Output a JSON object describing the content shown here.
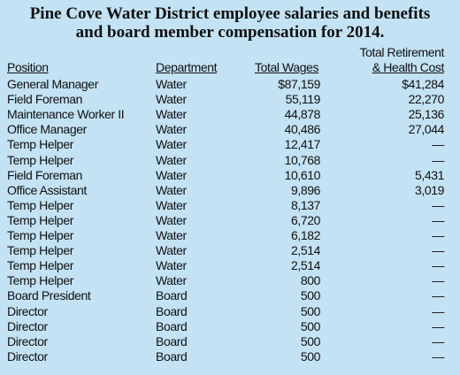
{
  "title": [
    "Pine Cove Water District employee salaries and benefits",
    "and board member compensation for 2014."
  ],
  "table": {
    "headers": [
      "Position",
      "Department",
      "Total Wages",
      [
        "Total Retirement",
        "& Health Cost"
      ]
    ],
    "rows": [
      [
        "General Manager",
        "Water",
        "$87,159",
        "$41,284"
      ],
      [
        "Field Foreman",
        "Water",
        "55,119",
        "22,270"
      ],
      [
        "Maintenance Worker II",
        "Water",
        "44,878",
        "25,136"
      ],
      [
        "Office Manager",
        "Water",
        "40,486",
        "27,044"
      ],
      [
        "Temp Helper",
        "Water",
        "12,417",
        "—"
      ],
      [
        "Temp Helper",
        "Water",
        "10,768",
        "—"
      ],
      [
        "Field Foreman",
        "Water",
        "10,610",
        "5,431"
      ],
      [
        "Office Assistant",
        "Water",
        "9,896",
        "3,019"
      ],
      [
        "Temp Helper",
        "Water",
        "8,137",
        "—"
      ],
      [
        "Temp Helper",
        "Water",
        "6,720",
        "—"
      ],
      [
        "Temp Helper",
        "Water",
        "6,182",
        "—"
      ],
      [
        "Temp Helper",
        "Water",
        "2,514",
        "—"
      ],
      [
        "Temp Helper",
        "Water",
        "2,514",
        "—"
      ],
      [
        "Temp Helper",
        "Water",
        "800",
        "—"
      ],
      [
        "Board President",
        "Board",
        "500",
        "—"
      ],
      [
        "Director",
        "Board",
        "500",
        "—"
      ],
      [
        "Director",
        "Board",
        "500",
        "—"
      ],
      [
        "Director",
        "Board",
        "500",
        "—"
      ],
      [
        "Director",
        "Board",
        "500",
        "—"
      ]
    ]
  }
}
